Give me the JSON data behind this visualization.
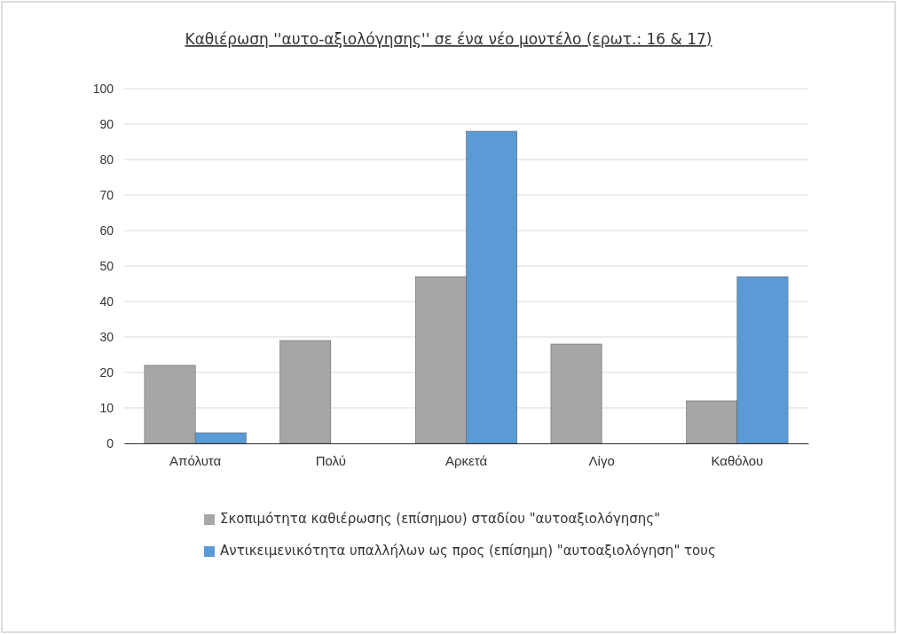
{
  "chart_data": {
    "type": "bar",
    "title": "Καθιέρωση ''αυτο-αξιολόγησης'' σε ένα νέο μοντέλο (ερωτ.: 16 & 17)",
    "categories": [
      "Απόλυτα",
      "Πολύ",
      "Αρκετά",
      "Λίγο",
      "Καθόλου"
    ],
    "series": [
      {
        "name": "Σκοπιμότητα καθιέρωσης (επίσημου) σταδίου \"αυτοαξιολόγησης\"",
        "color": "#a6a6a6",
        "values": [
          22,
          29,
          47,
          28,
          12
        ]
      },
      {
        "name": "Αντικειμενικότητα υπαλλήλων ως προς (επίσημη) \"αυτοαξιολόγηση\" τους",
        "color": "#5b9bd5",
        "values": [
          3,
          null,
          88,
          null,
          47
        ]
      }
    ],
    "ylim": [
      0,
      100
    ],
    "yticks": [
      0,
      10,
      20,
      30,
      40,
      50,
      60,
      70,
      80,
      90,
      100
    ],
    "grid": "y",
    "legend": "bottom"
  }
}
